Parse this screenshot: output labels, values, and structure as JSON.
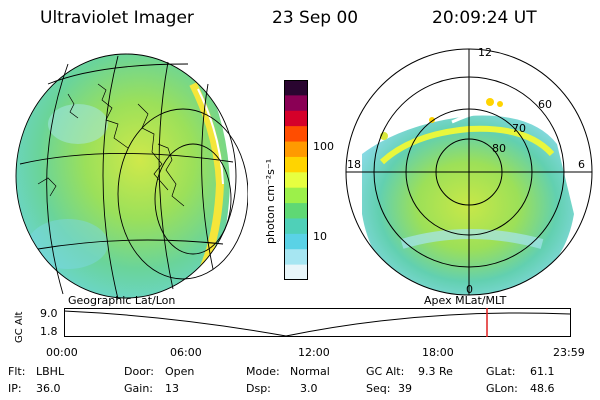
{
  "header": {
    "title": "Ultraviolet Imager",
    "date": "23 Sep 00",
    "time": "20:09:24 UT"
  },
  "panels": {
    "geo_caption": "Geographic Lat/Lon",
    "apex_caption": "Apex MLat/MLT",
    "polar_labels": {
      "mlt_noon": "12",
      "mlt_dawn": "6",
      "mlt_dusk": "18",
      "mlt_midnight": "0",
      "lat_60": "60",
      "lat_70": "70",
      "lat_80": "80"
    }
  },
  "colorbar": {
    "unit_label": "photon cm⁻²s⁻¹",
    "ticks": [
      "100",
      "10"
    ],
    "colors": [
      "#2a0530",
      "#8a0055",
      "#d5002a",
      "#ff4d00",
      "#ff9a00",
      "#ffd400",
      "#e7ff40",
      "#9cf04a",
      "#5fd874",
      "#4fd0b8",
      "#5ad2e6",
      "#a6e6f2",
      "#e8f6fa"
    ]
  },
  "timeline": {
    "axis_label": "GC Alt",
    "y_ticks": [
      "9.0",
      "1.8"
    ],
    "x_ticks": [
      "00:00",
      "06:00",
      "12:00",
      "18:00",
      "23:59"
    ],
    "marker_color": "#e02020"
  },
  "info": {
    "flt_label": "Flt:",
    "flt_value": "LBHL",
    "ip_label": "IP:",
    "ip_value": "36.0",
    "door_label": "Door:",
    "door_value": "Open",
    "gain_label": "Gain:",
    "gain_value": "13",
    "mode_label": "Mode:",
    "mode_value": "Normal",
    "dsp_label": "Dsp:",
    "dsp_value": "3.0",
    "gcalt_label": "GC Alt:",
    "gcalt_value": "9.3 Re",
    "seq_label": "Seq:",
    "seq_value": "39",
    "glat_label": "GLat:",
    "glat_value": "61.1",
    "glon_label": "GLon:",
    "glon_value": "48.6"
  }
}
